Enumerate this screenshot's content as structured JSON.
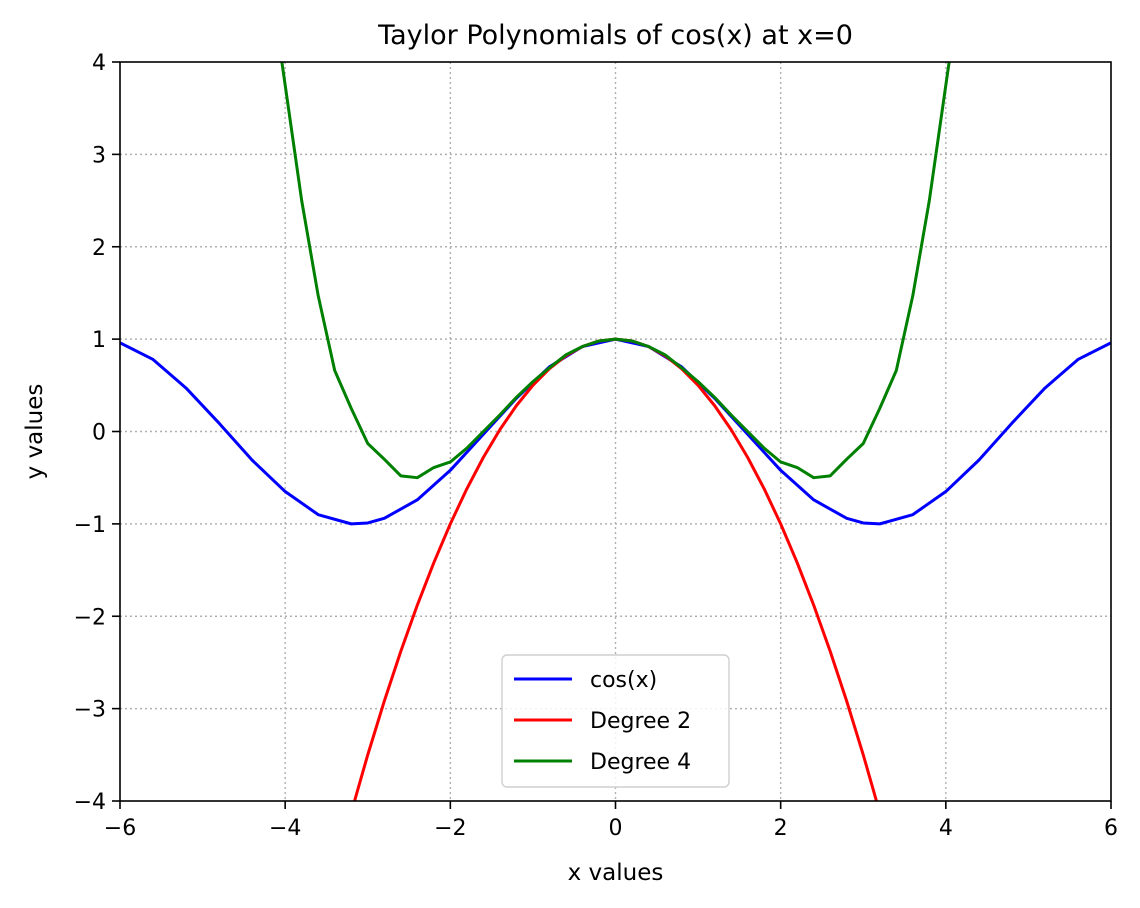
{
  "chart_data": {
    "type": "line",
    "title": "Taylor Polynomials of cos(x) at x=0",
    "xlabel": "x values",
    "ylabel": "y values",
    "xlim": [
      -6,
      6
    ],
    "ylim": [
      -4,
      4
    ],
    "xticks": [
      -6,
      -4,
      -2,
      0,
      2,
      4,
      6
    ],
    "yticks": [
      -4,
      -3,
      -2,
      -1,
      0,
      1,
      2,
      3,
      4
    ],
    "xtick_labels": [
      "−6",
      "−4",
      "−2",
      "0",
      "2",
      "4",
      "6"
    ],
    "ytick_labels": [
      "−4",
      "−3",
      "−2",
      "−1",
      "0",
      "1",
      "2",
      "3",
      "4"
    ],
    "grid": true,
    "grid_style": "dotted",
    "legend_position": "lower center",
    "series": [
      {
        "name": "cos(x)",
        "color": "#0000ff",
        "x": [
          -6.0,
          -5.6,
          -5.2,
          -4.8,
          -4.4,
          -4.0,
          -3.6,
          -3.2,
          -3.0,
          -2.8,
          -2.4,
          -2.0,
          -1.6,
          -1.2,
          -0.8,
          -0.4,
          0.0,
          0.4,
          0.8,
          1.2,
          1.6,
          2.0,
          2.4,
          2.8,
          3.0,
          3.2,
          3.6,
          4.0,
          4.4,
          4.8,
          5.2,
          5.6,
          6.0
        ],
        "y": [
          0.96,
          0.78,
          0.47,
          0.09,
          -0.31,
          -0.65,
          -0.9,
          -1.0,
          -0.99,
          -0.94,
          -0.74,
          -0.42,
          -0.03,
          0.36,
          0.7,
          0.92,
          1.0,
          0.92,
          0.7,
          0.36,
          -0.03,
          -0.42,
          -0.74,
          -0.94,
          -0.99,
          -1.0,
          -0.9,
          -0.65,
          -0.31,
          0.09,
          0.47,
          0.78,
          0.96
        ]
      },
      {
        "name": "Degree 2",
        "color": "#ff0000",
        "x": [
          -3.16,
          -3.0,
          -2.8,
          -2.6,
          -2.4,
          -2.2,
          -2.0,
          -1.8,
          -1.6,
          -1.4,
          -1.2,
          -1.0,
          -0.8,
          -0.6,
          -0.4,
          -0.2,
          0.0,
          0.2,
          0.4,
          0.6,
          0.8,
          1.0,
          1.2,
          1.4,
          1.6,
          1.8,
          2.0,
          2.2,
          2.4,
          2.6,
          2.8,
          3.0,
          3.16
        ],
        "y": [
          -4.0,
          -3.5,
          -2.92,
          -2.38,
          -1.88,
          -1.42,
          -1.0,
          -0.62,
          -0.28,
          0.02,
          0.28,
          0.5,
          0.68,
          0.82,
          0.92,
          0.98,
          1.0,
          0.98,
          0.92,
          0.82,
          0.68,
          0.5,
          0.28,
          0.02,
          -0.28,
          -0.62,
          -1.0,
          -1.42,
          -1.88,
          -2.38,
          -2.92,
          -3.5,
          -4.0
        ]
      },
      {
        "name": "Degree 4",
        "color": "#008000",
        "x": [
          -4.04,
          -3.8,
          -3.6,
          -3.4,
          -3.2,
          -3.0,
          -2.8,
          -2.6,
          -2.4,
          -2.2,
          -2.0,
          -1.8,
          -1.6,
          -1.4,
          -1.2,
          -1.0,
          -0.8,
          -0.6,
          -0.4,
          -0.2,
          0.0,
          0.2,
          0.4,
          0.6,
          0.8,
          1.0,
          1.2,
          1.4,
          1.6,
          1.8,
          2.0,
          2.2,
          2.4,
          2.6,
          2.8,
          3.0,
          3.2,
          3.4,
          3.6,
          3.8,
          4.04
        ],
        "y": [
          4.0,
          2.5,
          1.47,
          0.66,
          0.25,
          -0.13,
          -0.3,
          -0.48,
          -0.5,
          -0.39,
          -0.33,
          -0.18,
          0.0,
          0.18,
          0.37,
          0.54,
          0.69,
          0.83,
          0.92,
          0.98,
          1.0,
          0.98,
          0.92,
          0.83,
          0.69,
          0.54,
          0.37,
          0.18,
          0.0,
          -0.18,
          -0.33,
          -0.39,
          -0.5,
          -0.48,
          -0.3,
          -0.13,
          0.25,
          0.66,
          1.47,
          2.5,
          4.0
        ]
      }
    ]
  }
}
